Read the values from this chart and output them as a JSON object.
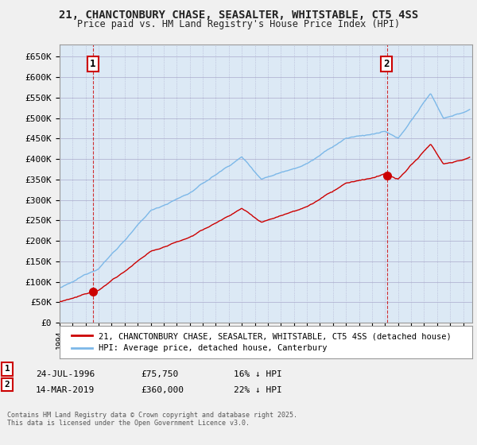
{
  "title_line1": "21, CHANCTONBURY CHASE, SEASALTER, WHITSTABLE, CT5 4SS",
  "title_line2": "Price paid vs. HM Land Registry's House Price Index (HPI)",
  "ylabel_ticks": [
    "£0",
    "£50K",
    "£100K",
    "£150K",
    "£200K",
    "£250K",
    "£300K",
    "£350K",
    "£400K",
    "£450K",
    "£500K",
    "£550K",
    "£600K",
    "£650K"
  ],
  "ytick_values": [
    0,
    50000,
    100000,
    150000,
    200000,
    250000,
    300000,
    350000,
    400000,
    450000,
    500000,
    550000,
    600000,
    650000
  ],
  "hpi_color": "#7cb8e8",
  "property_color": "#cc0000",
  "purchase1_t": 1996.56,
  "purchase1_price": 75750,
  "purchase2_t": 2019.19,
  "purchase2_price": 360000,
  "xmin": 1994.0,
  "xmax": 2025.7,
  "ymin": 0,
  "ymax": 680000,
  "legend_line1": "21, CHANCTONBURY CHASE, SEASALTER, WHITSTABLE, CT5 4SS (detached house)",
  "legend_line2": "HPI: Average price, detached house, Canterbury",
  "purchase1_note": "24-JUL-1996",
  "purchase1_price_str": "£75,750",
  "purchase1_hpi_pct": "16% ↓ HPI",
  "purchase2_note": "14-MAR-2019",
  "purchase2_price_str": "£360,000",
  "purchase2_hpi_pct": "22% ↓ HPI",
  "footnote": "Contains HM Land Registry data © Crown copyright and database right 2025.\nThis data is licensed under the Open Government Licence v3.0.",
  "background_color": "#f0f0f0",
  "plot_bg_color": "#dce9f5",
  "grid_color": "#aaaacc"
}
